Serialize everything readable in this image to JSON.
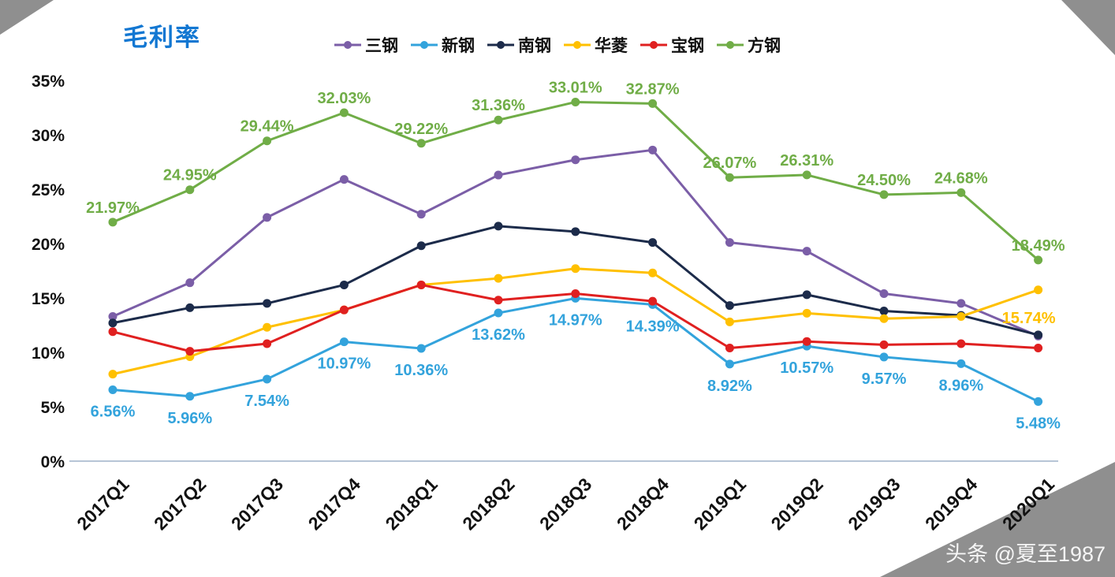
{
  "page": {
    "title": "毛利率",
    "watermark": "头条 @夏至1987",
    "background_color": "#8f8f8f",
    "slide_color": "#ffffff",
    "title_color": "#1277d2"
  },
  "chart_data": {
    "type": "line",
    "title": "毛利率",
    "legend_position": "top",
    "grid": false,
    "ylim": [
      0,
      35
    ],
    "y_ticks": [
      "0%",
      "5%",
      "10%",
      "15%",
      "20%",
      "25%",
      "30%",
      "35%"
    ],
    "categories": [
      "2017Q1",
      "2017Q2",
      "2017Q3",
      "2017Q4",
      "2018Q1",
      "2018Q2",
      "2018Q3",
      "2018Q4",
      "2019Q1",
      "2019Q2",
      "2019Q3",
      "2019Q4",
      "2020Q1"
    ],
    "series": [
      {
        "name": "三钢",
        "color": "#7B5EA7",
        "values": [
          13.3,
          16.4,
          22.4,
          25.9,
          22.7,
          26.3,
          27.7,
          28.6,
          20.1,
          19.3,
          15.4,
          14.5,
          11.5
        ],
        "labels": null,
        "label_position": null
      },
      {
        "name": "新钢",
        "color": "#33A3DC",
        "values": [
          6.56,
          5.96,
          7.54,
          10.97,
          10.36,
          13.62,
          14.97,
          14.39,
          8.92,
          10.57,
          9.57,
          8.96,
          5.48
        ],
        "labels": [
          "6.56%",
          "5.96%",
          "7.54%",
          "10.97%",
          "10.36%",
          "13.62%",
          "14.97%",
          "14.39%",
          "8.92%",
          "10.57%",
          "9.57%",
          "8.96%",
          "5.48%"
        ],
        "label_position": "below"
      },
      {
        "name": "南钢",
        "color": "#1C2B4A",
        "values": [
          12.7,
          14.1,
          14.5,
          16.2,
          19.8,
          21.6,
          21.1,
          20.1,
          14.3,
          15.3,
          13.8,
          13.4,
          11.6
        ],
        "labels": null,
        "label_position": null
      },
      {
        "name": "华菱",
        "color": "#FFC000",
        "values": [
          8.0,
          9.6,
          12.3,
          13.9,
          16.2,
          16.8,
          17.7,
          17.3,
          12.8,
          13.6,
          13.1,
          13.3,
          15.74
        ],
        "labels": [
          "",
          "",
          "",
          "",
          "",
          "",
          "",
          "",
          "",
          "",
          "",
          "",
          "15.74%"
        ],
        "label_position": "below-left"
      },
      {
        "name": "宝钢",
        "color": "#E02020",
        "values": [
          11.9,
          10.1,
          10.8,
          13.9,
          16.2,
          14.8,
          15.4,
          14.7,
          10.4,
          11.0,
          10.7,
          10.8,
          10.4
        ],
        "labels": null,
        "label_position": null
      },
      {
        "name": "方钢",
        "color": "#70AD47",
        "values": [
          21.97,
          24.95,
          29.44,
          32.03,
          29.22,
          31.36,
          33.01,
          32.87,
          26.07,
          26.31,
          24.5,
          24.68,
          18.49
        ],
        "labels": [
          "21.97%",
          "24.95%",
          "29.44%",
          "32.03%",
          "29.22%",
          "31.36%",
          "33.01%",
          "32.87%",
          "26.07%",
          "26.31%",
          "24.50%",
          "24.68%",
          "18.49%"
        ],
        "label_position": "above"
      }
    ]
  }
}
